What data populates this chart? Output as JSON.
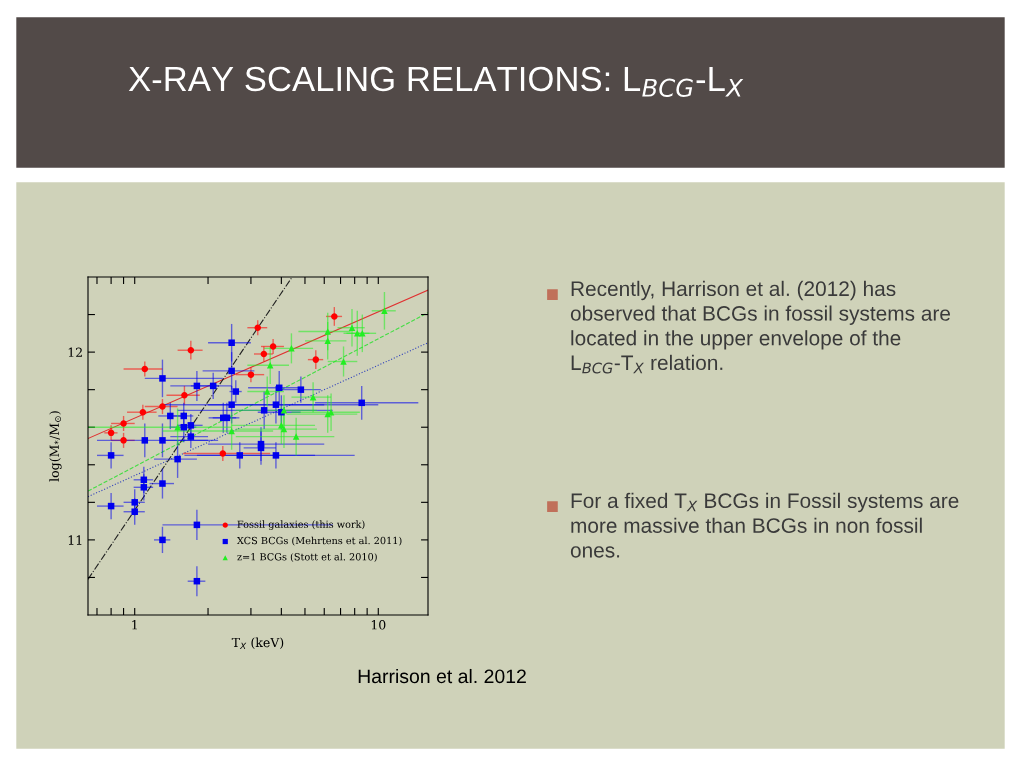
{
  "chart_data": {
    "type": "scatter",
    "title": "X-RAY SCALING RELATIONS: L$_{BCG}$-L$_{X}$",
    "xlabel": "T$_{X}$ (keV)",
    "ylabel": "log(M$_{*}$/M$_{⊙}$)",
    "log": "x",
    "xlim": [
      0.643,
      16
    ],
    "ylim": [
      10.6,
      12.4
    ],
    "xticks": [
      {
        "value": 0.7,
        "label": null
      },
      {
        "value": 0.8,
        "label": null
      },
      {
        "value": 0.9,
        "label": null
      },
      1,
      {
        "value": 2,
        "label": null
      },
      {
        "value": 3,
        "label": null
      },
      {
        "value": 4,
        "label": null
      },
      {
        "value": 5,
        "label": null
      },
      {
        "value": 6,
        "label": null
      },
      {
        "value": 7,
        "label": null
      },
      {
        "value": 8,
        "label": null
      },
      {
        "value": 9,
        "label": null
      },
      10
    ],
    "yticks": [
      {
        "value": 10.8,
        "label": null
      },
      11,
      {
        "value": 11.2,
        "label": null
      },
      {
        "value": 11.4,
        "label": null
      },
      {
        "value": 11.6,
        "label": null
      },
      {
        "value": 11.8,
        "label": null
      },
      12,
      {
        "value": 12.2,
        "label": null
      }
    ],
    "grid": false,
    "legend": "bottom right",
    "series": [
      {
        "name": "Fossil galaxies (this work)",
        "color": "#ff0000",
        "marker": "circle",
        "x": [
          0.8,
          0.9,
          0.9,
          1.08,
          1.1,
          1.3,
          1.6,
          1.7,
          2.3,
          3.2,
          3.39,
          3.7,
          3.0,
          5.54,
          6.6
        ],
        "values": [
          11.57,
          11.53,
          11.62,
          11.68,
          11.91,
          11.71,
          11.77,
          12.01,
          11.46,
          12.13,
          11.99,
          12.03,
          11.88,
          11.96,
          12.19
        ],
        "xerrors": [
          0.05,
          0.1,
          0.1,
          0.15,
          0.2,
          0.2,
          0.25,
          0.2,
          [
            1.58,
            3.6
          ],
          0.3,
          0.3,
          0.4,
          0.4,
          0.4,
          0.5
        ],
        "errors": [
          0.04,
          0.04,
          0.04,
          0.04,
          0.04,
          0.04,
          0.05,
          0.05,
          0.04,
          0.04,
          0.04,
          0.04,
          0.04,
          0.05,
          0.05
        ]
      },
      {
        "name": "XCS BCGs (Mehrtens et al. 2011)",
        "color": "#0000ee",
        "marker": "square",
        "x": [
          0.8,
          0.8,
          1.0,
          1.0,
          1.09,
          1.09,
          1.3,
          1.3,
          1.8,
          1.8,
          1.5,
          1.1,
          1.3,
          1.3,
          1.4,
          1.59,
          1.59,
          1.7,
          1.7,
          1.8,
          2.1,
          2.5,
          2.5,
          2.6,
          2.5,
          2.31,
          2.39,
          3.92,
          4.81,
          3.8,
          3.4,
          4.0,
          3.3,
          3.3,
          2.7,
          3.8,
          8.55
        ],
        "values": [
          11.45,
          11.18,
          11.2,
          11.15,
          11.32,
          11.28,
          11.3,
          11.0,
          11.08,
          10.78,
          11.43,
          11.53,
          11.53,
          11.86,
          11.66,
          11.66,
          11.6,
          11.61,
          11.55,
          11.82,
          11.82,
          12.05,
          11.9,
          11.79,
          11.72,
          11.65,
          11.65,
          11.81,
          11.8,
          11.72,
          11.69,
          11.68,
          11.51,
          11.49,
          11.45,
          11.45,
          11.73
        ],
        "xerrors": [
          0.1,
          0.1,
          0.1,
          0.1,
          0.1,
          0.1,
          0.15,
          0.1,
          [
            1.3,
            6.5
          ],
          0.15,
          0.3,
          [
            0.7,
            2.0
          ],
          [
            1.3,
            2.2
          ],
          [
            1.1,
            2.3
          ],
          0.15,
          0.15,
          0.2,
          0.2,
          0.3,
          0.4,
          0.4,
          0.5,
          0.6,
          0.15,
          [
            1.3,
            6.0
          ],
          0.3,
          0.3,
          1.0,
          1.0,
          [
            2.0,
            10.0
          ],
          [
            1.5,
            6.5
          ],
          0.8,
          [
            2.0,
            6.0
          ],
          0.5,
          [
            1.8,
            5.5
          ],
          [
            1.6,
            8.0
          ],
          [
            5.5,
            14.6
          ]
        ],
        "errors": [
          0.07,
          0.07,
          0.07,
          0.07,
          0.07,
          0.07,
          0.08,
          0.07,
          0.08,
          0.08,
          0.1,
          0.09,
          0.09,
          0.1,
          0.07,
          0.07,
          0.08,
          0.06,
          0.06,
          0.08,
          0.07,
          0.1,
          0.1,
          0.06,
          0.1,
          0.08,
          0.08,
          0.09,
          0.07,
          0.1,
          0.1,
          0.09,
          0.09,
          0.09,
          0.07,
          0.07,
          0.09
        ]
      },
      {
        "name": "z=1 BCGs (Stott et al. 2010)",
        "color": "#22ee22",
        "marker": "triangle",
        "x": [
          10.6,
          7.8,
          8.2,
          8.6,
          6.2,
          6.2,
          7.2,
          4.4,
          3.6,
          3.5,
          5.4,
          4.1,
          4.0,
          4.1,
          4.6,
          6.2,
          6.4,
          2.5,
          1.5
        ],
        "values": [
          12.22,
          12.13,
          12.1,
          12.1,
          12.11,
          12.06,
          11.95,
          12.02,
          11.93,
          11.79,
          11.76,
          11.69,
          11.61,
          11.59,
          11.55,
          11.67,
          11.68,
          11.58,
          11.6
        ],
        "xerrors": [
          1.2,
          1.0,
          1.0,
          1.2,
          1.5,
          1.2,
          1.0,
          1.0,
          0.7,
          0.6,
          1.0,
          1.5,
          1.5,
          1.5,
          2.0,
          2.0,
          2.0,
          1.2,
          1.0
        ],
        "errors": [
          0.1,
          0.1,
          0.12,
          0.1,
          0.1,
          0.1,
          0.08,
          0.08,
          0.1,
          0.08,
          0.08,
          0.08,
          0.1,
          0.1,
          0.1,
          0.1,
          0.1,
          0.1,
          0.1
        ]
      },
      {
        "type": "line",
        "color": "#e03030",
        "line_style": "solid",
        "x": [
          0.643,
          16
        ],
        "values": [
          11.54,
          12.33
        ]
      },
      {
        "type": "line",
        "color": "#44dd44",
        "line_style": "dashed",
        "x": [
          0.643,
          16
        ],
        "values": [
          11.26,
          12.21
        ]
      },
      {
        "type": "line",
        "color": "#3344bb",
        "line_style": "dotted",
        "x": [
          0.643,
          16
        ],
        "values": [
          11.23,
          12.05
        ]
      },
      {
        "type": "line",
        "color": "#222222",
        "line_style": "dashdot",
        "x": [
          0.643,
          4.43
        ],
        "values": [
          10.79,
          12.4
        ]
      }
    ],
    "annotations": [
      "Recently, Harrison et al. (2012) has observed that BCGs in fossil systems are located in the upper envelope of the L$_{BCG}$-T$_{X}$ relation.",
      "For a fixed T$_{X}$ BCGs in Fossil systems are more massive than BCGs in non fossil ones.",
      "Harrison et al. 2012"
    ]
  }
}
